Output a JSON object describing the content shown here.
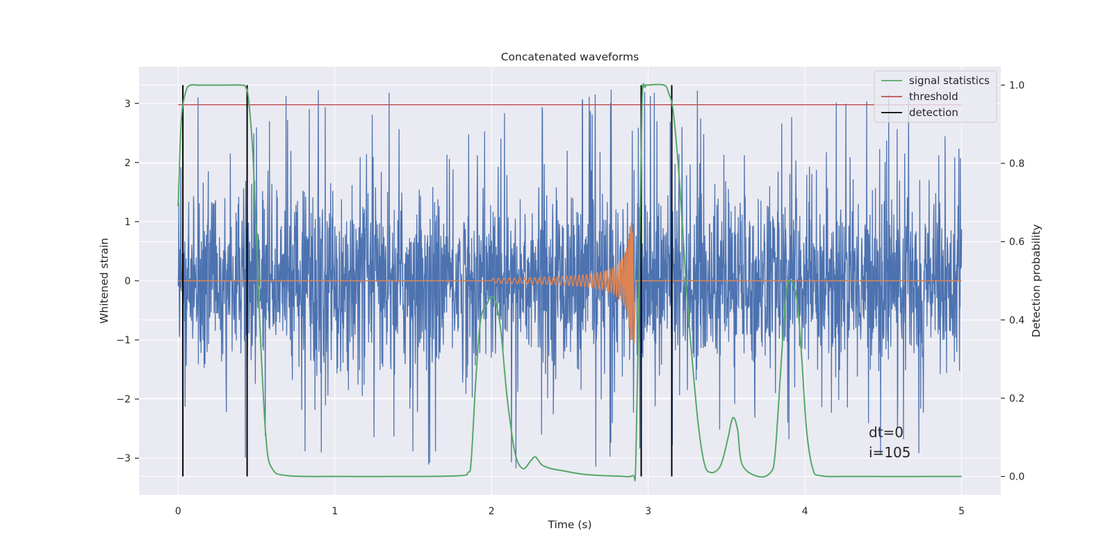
{
  "chart_data": {
    "type": "line",
    "title": "Concatenated waveforms",
    "xlabel": "Time (s)",
    "ylabel_left": "Whitened strain",
    "ylabel_right": "Detection probability",
    "xlim": [
      -0.25,
      5.25
    ],
    "ylim_left": [
      -3.62,
      3.62
    ],
    "ylim_right": [
      -0.047,
      1.047
    ],
    "x_ticks": [
      0,
      1,
      2,
      3,
      4,
      5
    ],
    "x_tick_labels": [
      "0",
      "1",
      "2",
      "3",
      "4",
      "5"
    ],
    "y_left_ticks": [
      -3,
      -2,
      -1,
      0,
      1,
      2,
      3
    ],
    "y_left_tick_labels": [
      "−3",
      "−2",
      "−1",
      "0",
      "1",
      "2",
      "3"
    ],
    "y_right_ticks": [
      0.0,
      0.2,
      0.4,
      0.6,
      0.8,
      1.0
    ],
    "y_right_tick_labels": [
      "0.0",
      "0.2",
      "0.4",
      "0.6",
      "0.8",
      "1.0"
    ],
    "grid": true,
    "legend_position": "top-right",
    "legend": [
      "signal statistics",
      "threshold",
      "detection"
    ],
    "annotation": [
      "dt=0",
      "i=105"
    ],
    "colors": {
      "strain": "#4c72b0",
      "injected_waveform": "#dd8452",
      "signal_statistics": "#55a868",
      "threshold": "#c44e52",
      "detection": "#000000",
      "plot_background": "#eaeaf2",
      "grid": "#ffffff"
    },
    "series": [
      {
        "name": "signal statistics",
        "axis": "right",
        "x": [
          0.0,
          0.02,
          0.05,
          0.08,
          0.12,
          0.2,
          0.3,
          0.4,
          0.43,
          0.45,
          0.48,
          0.52,
          0.56,
          0.6,
          0.7,
          1.0,
          1.5,
          1.8,
          1.85,
          1.87,
          1.9,
          1.93,
          1.97,
          2.0,
          2.03,
          2.06,
          2.1,
          2.15,
          2.2,
          2.25,
          2.28,
          2.32,
          2.38,
          2.45,
          2.6,
          2.8,
          2.9,
          2.92,
          2.94,
          2.96,
          2.98,
          3.0,
          3.1,
          3.13,
          3.16,
          3.2,
          3.24,
          3.28,
          3.32,
          3.36,
          3.4,
          3.45,
          3.48,
          3.51,
          3.54,
          3.57,
          3.6,
          3.7,
          3.78,
          3.81,
          3.85,
          3.88,
          3.91,
          3.95,
          3.98,
          4.01,
          4.05,
          4.1,
          4.3,
          5.0
        ],
        "y": [
          0.69,
          0.91,
          0.985,
          1.0,
          1.0,
          1.0,
          1.0,
          1.0,
          0.995,
          0.96,
          0.8,
          0.4,
          0.1,
          0.02,
          0.002,
          0.0,
          0.0,
          0.002,
          0.01,
          0.04,
          0.25,
          0.4,
          0.44,
          0.46,
          0.44,
          0.37,
          0.2,
          0.06,
          0.02,
          0.04,
          0.05,
          0.03,
          0.02,
          0.015,
          0.005,
          0.001,
          0.002,
          0.03,
          0.45,
          0.95,
          0.995,
          1.0,
          1.0,
          0.98,
          0.93,
          0.75,
          0.5,
          0.3,
          0.13,
          0.03,
          0.01,
          0.02,
          0.05,
          0.1,
          0.15,
          0.12,
          0.03,
          0.0,
          0.01,
          0.06,
          0.3,
          0.47,
          0.5,
          0.45,
          0.3,
          0.12,
          0.02,
          0.002,
          0.0,
          0.0
        ]
      },
      {
        "name": "threshold",
        "axis": "right",
        "x": [
          0.0,
          5.0
        ],
        "y": [
          0.95,
          0.95
        ]
      },
      {
        "name": "detection",
        "axis": "right",
        "x_positions": [
          0.03,
          0.44,
          2.955,
          3.15
        ],
        "y_range": [
          0.0,
          1.0
        ]
      },
      {
        "name": "",
        "axis": "left",
        "description_kind": "strain noise",
        "x_range": [
          0.0,
          5.0
        ],
        "amplitude": 0.75,
        "peak_range": [
          -3.3,
          3.3
        ]
      },
      {
        "name": "",
        "axis": "left",
        "description_kind": "injected chirp",
        "x_range": [
          2.0,
          2.9
        ],
        "amplitude_range": [
          0.04,
          1.0
        ]
      }
    ]
  }
}
